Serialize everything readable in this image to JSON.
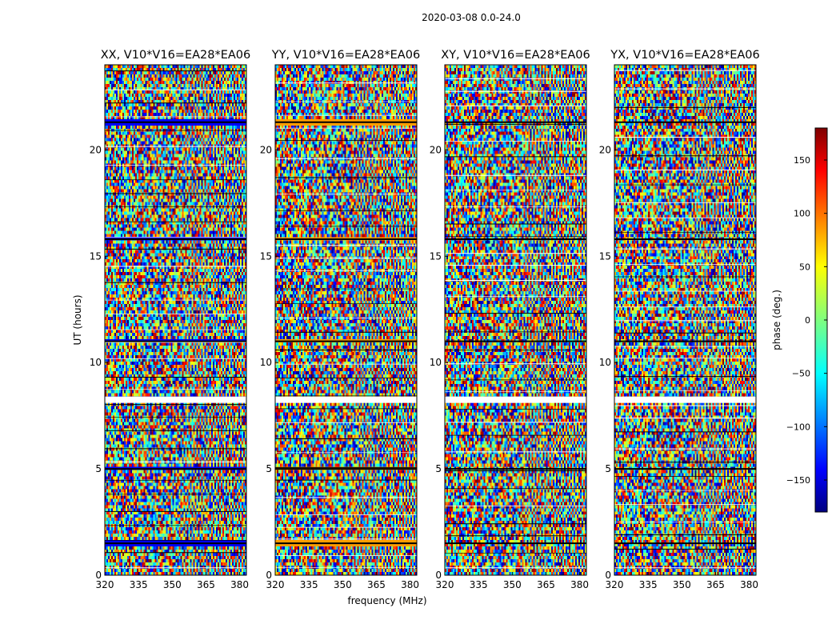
{
  "figure": {
    "suptitle": "2020-03-08 0.0-24.0"
  },
  "chart_data": {
    "type": "heatmap",
    "ylabel": "UT (hours)",
    "xlabel": "frequency (MHz)",
    "xlim": [
      320,
      383
    ],
    "ylim": [
      0,
      24
    ],
    "xticks": [
      320,
      335,
      350,
      365,
      380
    ],
    "yticks": [
      0,
      5,
      10,
      15,
      20
    ],
    "panels": [
      {
        "title": "XX, V10*V16=EA28*EA06"
      },
      {
        "title": "YY, V10*V16=EA28*EA06"
      },
      {
        "title": "XY, V10*V16=EA28*EA06"
      },
      {
        "title": "YX, V10*V16=EA28*EA06"
      }
    ],
    "colorbar": {
      "label": "phase (deg.)",
      "range": [
        -180,
        180
      ],
      "ticks": [
        -150,
        -100,
        -50,
        0,
        50,
        100,
        150
      ],
      "colormap": "jet"
    },
    "flagged_rows_hours": [
      1.5,
      5.0,
      8.3,
      11.0,
      15.8,
      21.3
    ]
  }
}
